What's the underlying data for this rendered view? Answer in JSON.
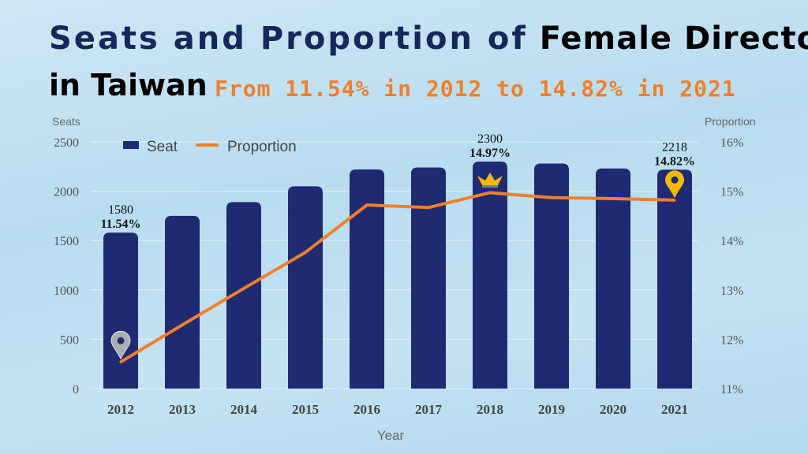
{
  "title": {
    "part1": "Seats and Proportion of",
    "part2": "Female Director",
    "line2": "in Taiwan",
    "subtitle": "From 11.54% in 2012 to 14.82% in 2021"
  },
  "colors": {
    "bar": "#1f2a73",
    "line": "#f07f2a",
    "title_navy": "#16285a",
    "subtitle": "#f07f2a",
    "marker": "#f5b800"
  },
  "chart_data": {
    "type": "bar+line",
    "categories": [
      "2012",
      "2013",
      "2014",
      "2015",
      "2016",
      "2017",
      "2018",
      "2019",
      "2020",
      "2021"
    ],
    "series": [
      {
        "name": "Seat",
        "type": "bar",
        "axis": "left",
        "values": [
          1580,
          1750,
          1890,
          2050,
          2220,
          2240,
          2300,
          2280,
          2230,
          2218
        ]
      },
      {
        "name": "Proportion",
        "type": "line",
        "axis": "right",
        "values": [
          11.54,
          12.29,
          13.03,
          13.76,
          14.72,
          14.67,
          14.97,
          14.87,
          14.85,
          14.82
        ]
      }
    ],
    "xlabel": "Year",
    "ylabel_left": "Seats",
    "ylabel_right": "Proportion",
    "ylim_left": [
      0,
      2500
    ],
    "ylim_right": [
      11,
      16
    ],
    "yticks_left": [
      "0",
      "500",
      "1000",
      "1500",
      "2000",
      "2500"
    ],
    "yticks_right": [
      "11%",
      "12%",
      "13%",
      "14%",
      "15%",
      "16%"
    ],
    "grid": true,
    "legend_position": "top-left",
    "annotations": [
      {
        "category": "2012",
        "seat": "1580",
        "proportion": "11.54%",
        "icon": "map-pin-icon-gray"
      },
      {
        "category": "2018",
        "seat": "2300",
        "proportion": "14.97%",
        "icon": "crown-icon"
      },
      {
        "category": "2021",
        "seat": "2218",
        "proportion": "14.82%",
        "icon": "map-pin-icon-yellow"
      }
    ]
  }
}
